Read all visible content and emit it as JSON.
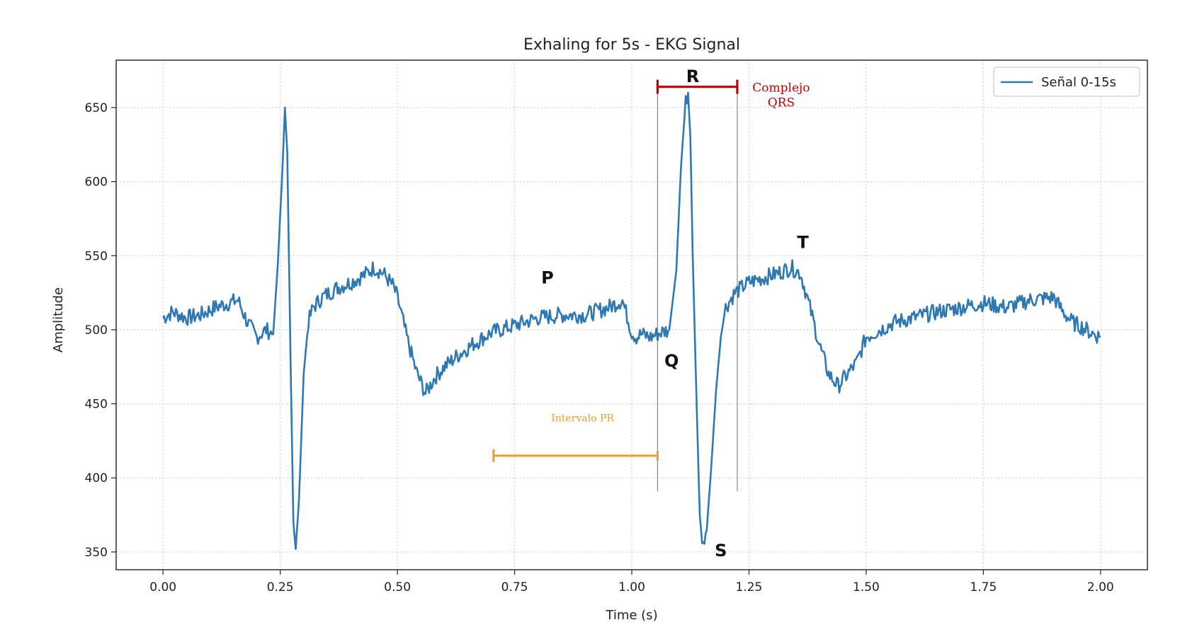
{
  "chart_data": {
    "type": "line",
    "title": "Exhaling for 5s - EKG Signal",
    "xlabel": "Time (s)",
    "ylabel": "Amplitude",
    "xlim": [
      -0.1,
      2.1
    ],
    "ylim": [
      338,
      682
    ],
    "xticks": [
      0.0,
      0.25,
      0.5,
      0.75,
      1.0,
      1.25,
      1.5,
      1.75,
      2.0
    ],
    "xtick_labels": [
      "0.00",
      "0.25",
      "0.50",
      "0.75",
      "1.00",
      "1.25",
      "1.50",
      "1.75",
      "2.00"
    ],
    "yticks": [
      350,
      400,
      450,
      500,
      550,
      600,
      650
    ],
    "yticks_labels": [
      "350",
      "400",
      "450",
      "500",
      "550",
      "600",
      "650"
    ],
    "grid": true,
    "legend_position": "top-right",
    "series": [
      {
        "name": "Señal 0-15s",
        "color": "#2e78b4",
        "x": [
          0.0,
          0.02,
          0.05,
          0.08,
          0.11,
          0.14,
          0.16,
          0.18,
          0.2,
          0.22,
          0.235,
          0.245,
          0.255,
          0.26,
          0.265,
          0.272,
          0.278,
          0.283,
          0.29,
          0.3,
          0.31,
          0.32,
          0.34,
          0.37,
          0.4,
          0.43,
          0.45,
          0.47,
          0.49,
          0.5,
          0.52,
          0.54,
          0.56,
          0.58,
          0.6,
          0.63,
          0.66,
          0.7,
          0.75,
          0.8,
          0.85,
          0.9,
          0.95,
          0.98,
          1.0,
          1.01,
          1.02,
          1.04,
          1.06,
          1.08,
          1.095,
          1.105,
          1.115,
          1.12,
          1.125,
          1.13,
          1.14,
          1.145,
          1.15,
          1.16,
          1.17,
          1.18,
          1.19,
          1.2,
          1.22,
          1.25,
          1.28,
          1.31,
          1.34,
          1.36,
          1.38,
          1.4,
          1.42,
          1.44,
          1.46,
          1.48,
          1.5,
          1.53,
          1.56,
          1.6,
          1.65,
          1.7,
          1.75,
          1.8,
          1.85,
          1.9,
          1.92,
          1.94,
          1.96,
          1.98,
          2.0
        ],
        "y": [
          508,
          512,
          508,
          510,
          515,
          518,
          520,
          505,
          495,
          500,
          497,
          545,
          610,
          650,
          620,
          480,
          370,
          352,
          385,
          470,
          505,
          515,
          522,
          528,
          532,
          537,
          542,
          538,
          530,
          522,
          495,
          472,
          457,
          468,
          475,
          483,
          490,
          498,
          503,
          508,
          510,
          510,
          515,
          520,
          498,
          495,
          497,
          495,
          498,
          500,
          540,
          610,
          655,
          660,
          630,
          550,
          430,
          375,
          357,
          365,
          410,
          460,
          495,
          515,
          525,
          532,
          535,
          538,
          542,
          538,
          515,
          490,
          470,
          462,
          470,
          478,
          495,
          500,
          505,
          508,
          512,
          515,
          518,
          515,
          520,
          522,
          512,
          505,
          502,
          498,
          495
        ]
      }
    ],
    "annotations": {
      "wave_labels": [
        {
          "label": "P",
          "x": 0.82,
          "y": 535
        },
        {
          "label": "Q",
          "x": 1.085,
          "y": 479
        },
        {
          "label": "R",
          "x": 1.13,
          "y": 671
        },
        {
          "label": "S",
          "x": 1.19,
          "y": 351
        },
        {
          "label": "T",
          "x": 1.365,
          "y": 559
        }
      ],
      "qrs": {
        "label_line1": "Complejo",
        "label_line2": "QRS",
        "x_start": 1.055,
        "x_end": 1.225,
        "y": 664,
        "color": "#c00000"
      },
      "pr": {
        "label": "Intervalo PR",
        "x_start": 0.705,
        "x_end": 1.055,
        "y": 415,
        "label_y": 438,
        "color": "#e8a030"
      },
      "vertical_markers": {
        "x": [
          1.055,
          1.225
        ],
        "y_bottom": 391,
        "y_top": 664,
        "color": "#8a8a8a"
      }
    }
  }
}
